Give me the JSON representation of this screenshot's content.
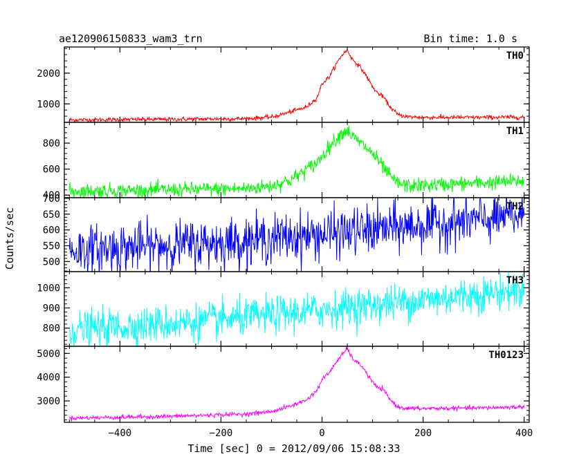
{
  "chart_data": {
    "type": "line",
    "title": "ae120906150833_wam3_trn",
    "bin_time_label": "Bin time: 1.0 s",
    "xlabel": "Time [sec] 0 = 2012/09/06 15:08:33",
    "ylabel": "Counts/sec",
    "xlim": [
      -510,
      410
    ],
    "x_ticks": [
      -400,
      -200,
      0,
      200,
      400
    ],
    "x_tick_labels": [
      "−400",
      "−200",
      "0",
      "200",
      "400"
    ],
    "grid": false,
    "panels": [
      {
        "name": "TH0",
        "color": "#ff0000",
        "ylim": [
          400,
          2850
        ],
        "y_ticks": [
          1000,
          2000
        ],
        "y_tick_labels": [
          "1000",
          "2000"
        ],
        "noise": 35,
        "profile": [
          [
            -500,
            480
          ],
          [
            -300,
            500
          ],
          [
            -150,
            520
          ],
          [
            -100,
            570
          ],
          [
            -60,
            750
          ],
          [
            -30,
            900
          ],
          [
            -10,
            1200
          ],
          [
            0,
            1650
          ],
          [
            15,
            1900
          ],
          [
            30,
            2350
          ],
          [
            40,
            2600
          ],
          [
            50,
            2750
          ],
          [
            60,
            2450
          ],
          [
            70,
            2300
          ],
          [
            80,
            2100
          ],
          [
            90,
            1850
          ],
          [
            100,
            1550
          ],
          [
            110,
            1350
          ],
          [
            120,
            1250
          ],
          [
            135,
            900
          ],
          [
            150,
            650
          ],
          [
            170,
            580
          ],
          [
            200,
            560
          ],
          [
            300,
            560
          ],
          [
            400,
            570
          ]
        ]
      },
      {
        "name": "TH1",
        "color": "#00ff00",
        "ylim": [
          380,
          960
        ],
        "y_ticks": [
          400,
          600,
          800
        ],
        "y_tick_labels": [
          "400",
          "600",
          "800"
        ],
        "noise": 28,
        "profile": [
          [
            -500,
            430
          ],
          [
            -300,
            440
          ],
          [
            -150,
            450
          ],
          [
            -100,
            470
          ],
          [
            -60,
            520
          ],
          [
            -30,
            600
          ],
          [
            -10,
            650
          ],
          [
            0,
            700
          ],
          [
            20,
            800
          ],
          [
            40,
            880
          ],
          [
            50,
            900
          ],
          [
            60,
            850
          ],
          [
            80,
            790
          ],
          [
            100,
            720
          ],
          [
            120,
            620
          ],
          [
            135,
            540
          ],
          [
            150,
            490
          ],
          [
            170,
            470
          ],
          [
            200,
            475
          ],
          [
            300,
            490
          ],
          [
            400,
            510
          ]
        ]
      },
      {
        "name": "TH2",
        "color": "#0000ff",
        "ylim": [
          468,
          702
        ],
        "y_ticks": [
          500,
          550,
          600,
          650,
          700
        ],
        "y_tick_labels": [
          "500",
          "550",
          "600",
          "650",
          "700"
        ],
        "noise": 38,
        "profile": [
          [
            -500,
            535
          ],
          [
            -200,
            560
          ],
          [
            0,
            585
          ],
          [
            200,
            615
          ],
          [
            400,
            645
          ]
        ]
      },
      {
        "name": "TH3",
        "color": "#00ffff",
        "ylim": [
          710,
          1080
        ],
        "y_ticks": [
          800,
          900,
          1000
        ],
        "y_tick_labels": [
          "800",
          "900",
          "1000"
        ],
        "noise": 45,
        "profile": [
          [
            -500,
            790
          ],
          [
            -200,
            840
          ],
          [
            0,
            890
          ],
          [
            200,
            940
          ],
          [
            400,
            990
          ]
        ]
      },
      {
        "name": "TH0123",
        "color": "#ff00ff",
        "ylim": [
          2100,
          5300
        ],
        "y_ticks": [
          3000,
          4000,
          5000
        ],
        "y_tick_labels": [
          "3000",
          "4000",
          "5000"
        ],
        "noise": 45,
        "profile": [
          [
            -500,
            2280
          ],
          [
            -300,
            2350
          ],
          [
            -150,
            2450
          ],
          [
            -100,
            2550
          ],
          [
            -60,
            2800
          ],
          [
            -30,
            3050
          ],
          [
            -10,
            3450
          ],
          [
            0,
            3900
          ],
          [
            15,
            4200
          ],
          [
            30,
            4700
          ],
          [
            40,
            4950
          ],
          [
            50,
            5200
          ],
          [
            60,
            4800
          ],
          [
            70,
            4600
          ],
          [
            80,
            4450
          ],
          [
            90,
            4100
          ],
          [
            100,
            3800
          ],
          [
            110,
            3550
          ],
          [
            120,
            3500
          ],
          [
            135,
            3050
          ],
          [
            150,
            2750
          ],
          [
            170,
            2680
          ],
          [
            200,
            2680
          ],
          [
            300,
            2700
          ],
          [
            400,
            2750
          ]
        ]
      }
    ]
  }
}
